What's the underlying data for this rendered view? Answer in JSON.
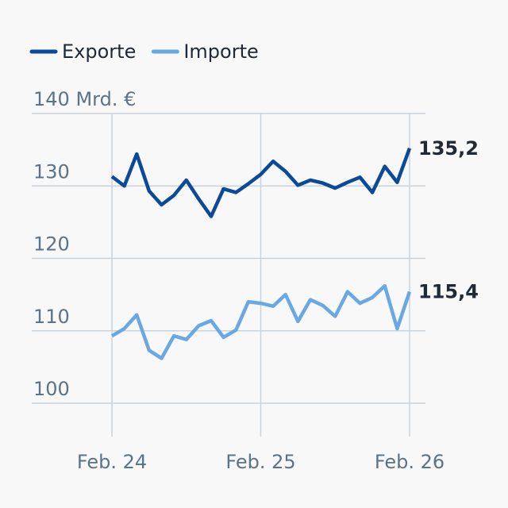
{
  "chart_data": {
    "type": "line",
    "categories": [
      "Feb. 24",
      null,
      null,
      null,
      null,
      null,
      null,
      null,
      null,
      null,
      null,
      null,
      "Feb. 25",
      null,
      null,
      null,
      null,
      null,
      null,
      null,
      null,
      null,
      null,
      null,
      "Feb. 26"
    ],
    "series": [
      {
        "name": "Exporte",
        "color": "#0b4a9a",
        "values": [
          131.3,
          130.0,
          134.4,
          129.3,
          127.4,
          128.7,
          130.8,
          128.2,
          125.8,
          129.6,
          129.1,
          130.3,
          131.6,
          133.4,
          132.0,
          130.1,
          130.8,
          130.4,
          129.7,
          130.5,
          131.2,
          129.1,
          132.7,
          130.5,
          135.2
        ],
        "value_labels": [
          null,
          null,
          null,
          null,
          null,
          null,
          null,
          null,
          null,
          null,
          null,
          null,
          null,
          null,
          null,
          null,
          null,
          null,
          null,
          null,
          null,
          null,
          null,
          null,
          "135,2"
        ]
      },
      {
        "name": "Importe",
        "color": "#6aa8e4",
        "values": [
          109.3,
          110.3,
          112.2,
          107.3,
          106.2,
          109.3,
          108.8,
          110.7,
          111.4,
          109.1,
          110.1,
          114.0,
          113.8,
          113.4,
          115.0,
          111.3,
          114.3,
          113.5,
          112.0,
          115.4,
          113.8,
          114.6,
          116.2,
          110.3,
          115.4
        ],
        "value_labels": [
          null,
          null,
          null,
          null,
          null,
          null,
          null,
          null,
          null,
          null,
          null,
          null,
          null,
          null,
          null,
          null,
          null,
          null,
          null,
          null,
          null,
          null,
          null,
          null,
          "115,4"
        ]
      }
    ],
    "ylim": [
      95.4,
      140
    ],
    "yticks": [
      100,
      110,
      120,
      130,
      {
        "value": 140,
        "label": "140 Mrd. €"
      }
    ],
    "grid": true
  }
}
